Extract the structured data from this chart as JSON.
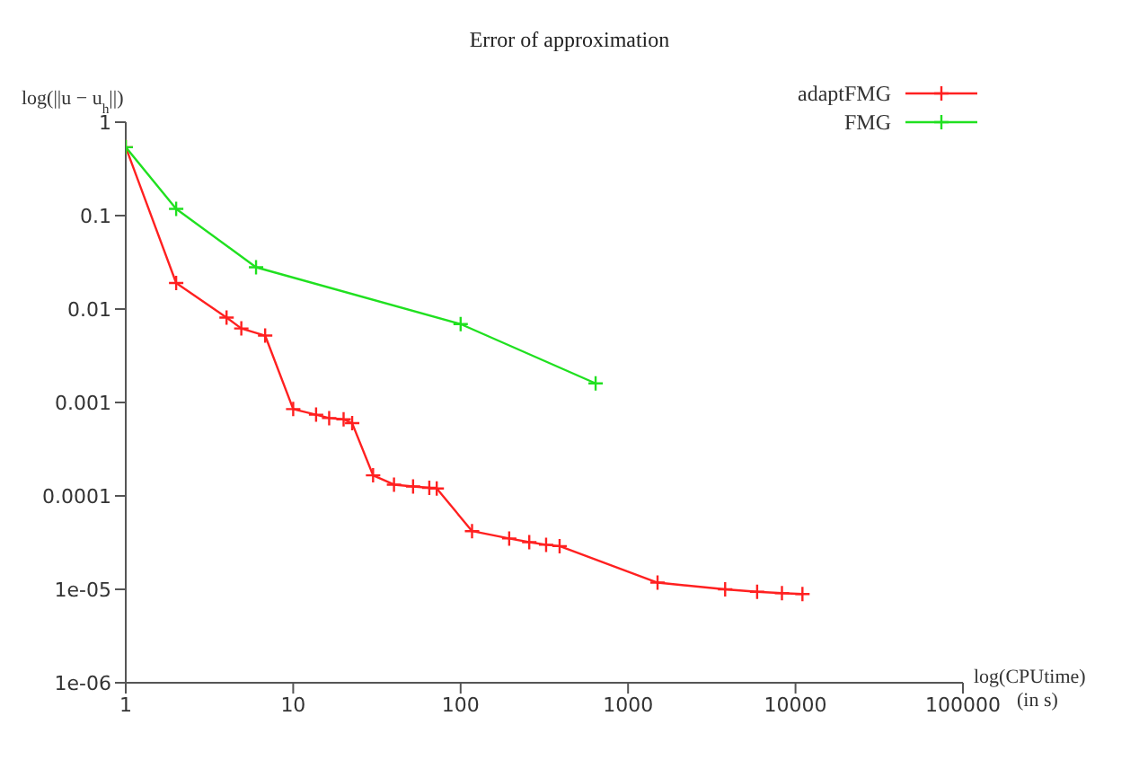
{
  "chart_data": {
    "type": "line",
    "title": "Error of approximation",
    "xlabel": "log(CPUtime) (in s)",
    "ylabel": "log(||u − u$_{h}$||)",
    "log": "xy",
    "grid": false,
    "legend": "top right",
    "marker": "cross",
    "xlim": [
      1,
      100000
    ],
    "xticks": [
      1,
      10,
      100,
      1000,
      10000,
      100000
    ],
    "ylim": [
      1e-06,
      1
    ],
    "yticks": [
      {
        "value": 1e-06,
        "label": "1e-06"
      },
      {
        "value": 1e-05,
        "label": "1e-05"
      },
      {
        "value": 0.0001,
        "label": "0.0001"
      },
      0.001,
      0.01,
      0.1,
      1
    ],
    "series": [
      {
        "name": "adaptFMG",
        "color": "#ff2020",
        "x": [
          1,
          2,
          4,
          4.9,
          6.8,
          10,
          13.7,
          16.4,
          20,
          22.5,
          30,
          40,
          52,
          65,
          72,
          117,
          195,
          257,
          324,
          390,
          1500,
          3800,
          5900,
          8300,
          11000
        ],
        "values": [
          0.54,
          0.019,
          0.0081,
          0.0062,
          0.0052,
          0.00085,
          0.00074,
          0.00068,
          0.00066,
          0.0006,
          0.000166,
          0.000132,
          0.000126,
          0.000122,
          0.00012,
          4.2e-05,
          3.5e-05,
          3.2e-05,
          3e-05,
          2.9e-05,
          1.18e-05,
          1e-05,
          9.4e-06,
          9.1e-06,
          8.9e-06
        ]
      },
      {
        "name": "FMG",
        "color": "#20e020",
        "x": [
          1,
          2,
          6,
          100,
          640
        ],
        "values": [
          0.54,
          0.118,
          0.028,
          0.0069,
          0.0016
        ]
      }
    ]
  }
}
